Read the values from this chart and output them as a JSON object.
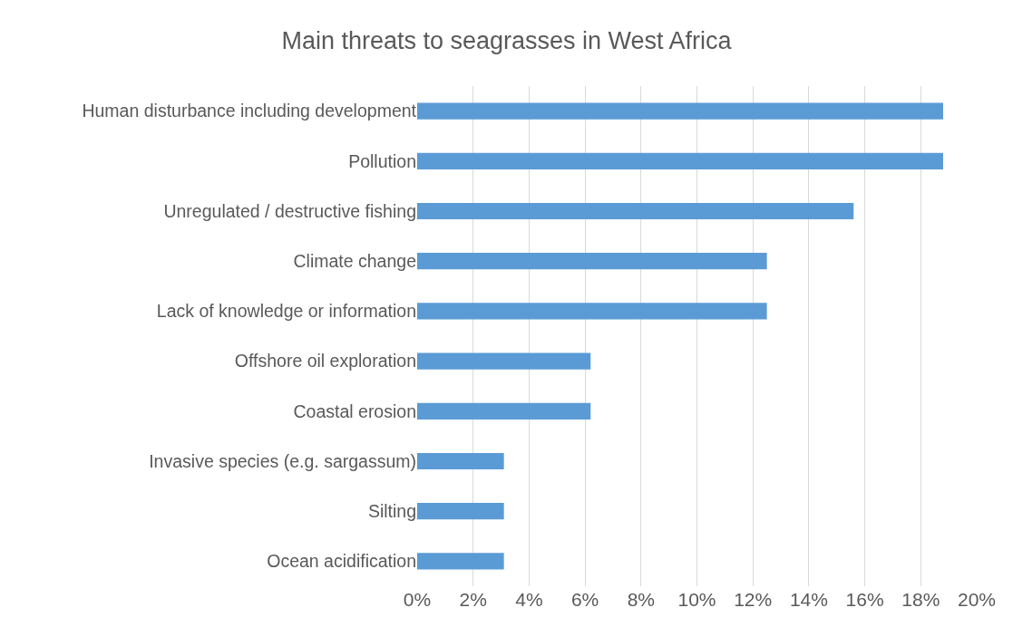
{
  "chart_data": {
    "type": "bar",
    "orientation": "horizontal",
    "title": "Main threats to seagrasses in West Africa",
    "categories": [
      "Human disturbance including development",
      "Pollution",
      "Unregulated / destructive fishing",
      "Climate change",
      "Lack of knowledge or information",
      "Offshore oil exploration",
      "Coastal erosion",
      "Invasive species (e.g. sargassum)",
      "Silting",
      "Ocean acidification"
    ],
    "values": [
      18.8,
      18.8,
      15.6,
      12.5,
      12.5,
      6.2,
      6.2,
      3.1,
      3.1,
      3.1
    ],
    "color": "#5b9bd5",
    "xlim": [
      0,
      20
    ],
    "xticks": [
      {
        "value": 0,
        "label": "0%"
      },
      {
        "value": 2,
        "label": "2%"
      },
      {
        "value": 4,
        "label": "4%"
      },
      {
        "value": 6,
        "label": "6%"
      },
      {
        "value": 8,
        "label": "8%"
      },
      {
        "value": 10,
        "label": "10%"
      },
      {
        "value": 12,
        "label": "12%"
      },
      {
        "value": 14,
        "label": "14%"
      },
      {
        "value": 16,
        "label": "16%"
      },
      {
        "value": 18,
        "label": "18%"
      },
      {
        "value": 20,
        "label": "20%"
      }
    ],
    "grid": "x",
    "legend": false
  }
}
